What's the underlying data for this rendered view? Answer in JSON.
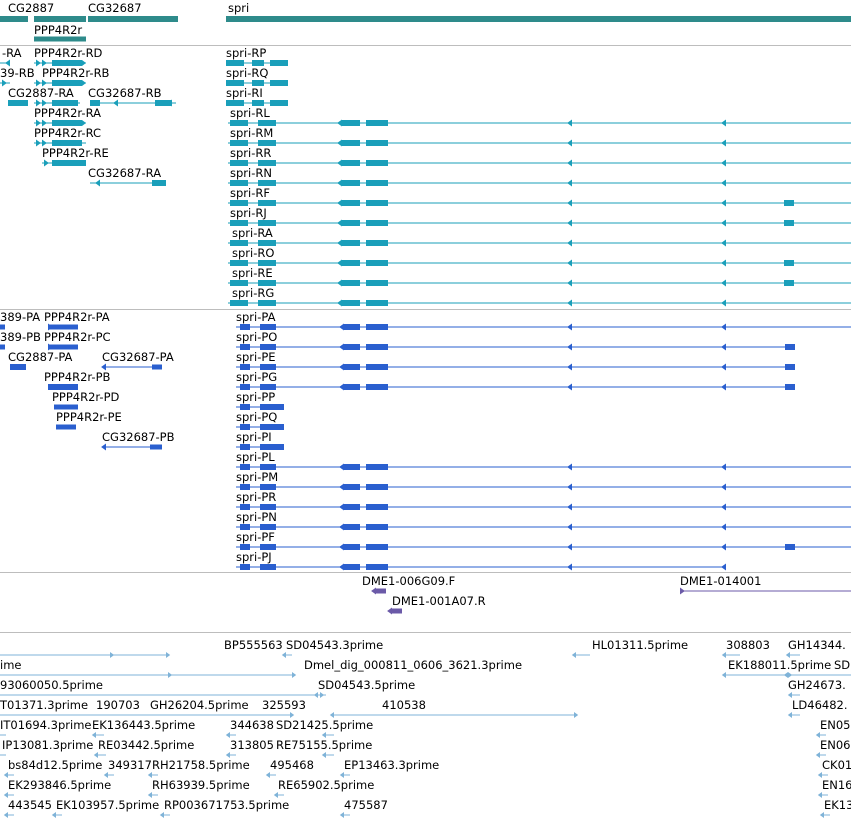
{
  "colors": {
    "gene": "#2e8b8b",
    "transcript": "#1a9fba",
    "protein": "#2a5fcf",
    "cdna": "#6b5aa8",
    "est": "#7fb3d8",
    "divider": "#bdbdbd"
  },
  "tracks": {
    "genes": {
      "labels": [
        {
          "id": "g1",
          "text": "CG2887"
        },
        {
          "id": "g2",
          "text": "PPP4R2r"
        },
        {
          "id": "g3",
          "text": "CG32687"
        },
        {
          "id": "g4",
          "text": "spri"
        }
      ]
    },
    "transcripts": {
      "labels": [
        {
          "id": "t1",
          "text": "-RA"
        },
        {
          "id": "t2",
          "text": "PPP4R2r-RD"
        },
        {
          "id": "t3",
          "text": "spri-RP"
        },
        {
          "id": "t4",
          "text": "39-RB"
        },
        {
          "id": "t5",
          "text": "PPP4R2r-RB"
        },
        {
          "id": "t6",
          "text": "spri-RQ"
        },
        {
          "id": "t7",
          "text": "CG2887-RA"
        },
        {
          "id": "t8",
          "text": "CG32687-RB"
        },
        {
          "id": "t9",
          "text": "spri-RI"
        },
        {
          "id": "t10",
          "text": "PPP4R2r-RA"
        },
        {
          "id": "t11",
          "text": "spri-RL"
        },
        {
          "id": "t12",
          "text": "PPP4R2r-RC"
        },
        {
          "id": "t13",
          "text": "spri-RM"
        },
        {
          "id": "t14",
          "text": "PPP4R2r-RE"
        },
        {
          "id": "t15",
          "text": "spri-RR"
        },
        {
          "id": "t16",
          "text": "CG32687-RA"
        },
        {
          "id": "t17",
          "text": "spri-RN"
        },
        {
          "id": "t18",
          "text": "spri-RF"
        },
        {
          "id": "t19",
          "text": "spri-RJ"
        },
        {
          "id": "t20",
          "text": "spri-RA"
        },
        {
          "id": "t21",
          "text": "spri-RO"
        },
        {
          "id": "t22",
          "text": "spri-RE"
        },
        {
          "id": "t23",
          "text": "spri-RG"
        }
      ]
    },
    "proteins": {
      "labels": [
        {
          "id": "p1",
          "text": "389-PA"
        },
        {
          "id": "p2",
          "text": "PPP4R2r-PA"
        },
        {
          "id": "p3",
          "text": "spri-PA"
        },
        {
          "id": "p4",
          "text": "389-PB"
        },
        {
          "id": "p5",
          "text": "PPP4R2r-PC"
        },
        {
          "id": "p6",
          "text": "spri-PO"
        },
        {
          "id": "p7",
          "text": "CG2887-PA"
        },
        {
          "id": "p8",
          "text": "CG32687-PA"
        },
        {
          "id": "p9",
          "text": "spri-PE"
        },
        {
          "id": "p10",
          "text": "PPP4R2r-PB"
        },
        {
          "id": "p11",
          "text": "spri-PG"
        },
        {
          "id": "p12",
          "text": "PPP4R2r-PD"
        },
        {
          "id": "p13",
          "text": "spri-PP"
        },
        {
          "id": "p14",
          "text": "PPP4R2r-PE"
        },
        {
          "id": "p15",
          "text": "spri-PQ"
        },
        {
          "id": "p16",
          "text": "CG32687-PB"
        },
        {
          "id": "p17",
          "text": "spri-PI"
        },
        {
          "id": "p18",
          "text": "spri-PL"
        },
        {
          "id": "p19",
          "text": "spri-PM"
        },
        {
          "id": "p20",
          "text": "spri-PR"
        },
        {
          "id": "p21",
          "text": "spri-PN"
        },
        {
          "id": "p22",
          "text": "spri-PF"
        },
        {
          "id": "p23",
          "text": "spri-PJ"
        }
      ]
    },
    "cdna": {
      "labels": [
        {
          "id": "c1",
          "text": "DME1-006G09.F"
        },
        {
          "id": "c2",
          "text": "DME1-014001"
        },
        {
          "id": "c3",
          "text": "DME1-001A07.R"
        }
      ]
    },
    "ests": {
      "labels": [
        {
          "id": "e1",
          "text": "BP555563"
        },
        {
          "id": "e2",
          "text": "SD04543.3prime"
        },
        {
          "id": "e3",
          "text": "HL01311.5prime"
        },
        {
          "id": "e4",
          "text": "308803"
        },
        {
          "id": "e5",
          "text": "GH14344."
        },
        {
          "id": "e6",
          "text": "ime"
        },
        {
          "id": "e7",
          "text": "Dmel_dig_000811_0606_3621.3prime"
        },
        {
          "id": "e8",
          "text": "EK188011.5prime"
        },
        {
          "id": "e9",
          "text": "SD"
        },
        {
          "id": "e10",
          "text": "93060050.5prime"
        },
        {
          "id": "e11",
          "text": "SD04543.5prime"
        },
        {
          "id": "e12",
          "text": "GH24673."
        },
        {
          "id": "e13",
          "text": "T01371.3prime"
        },
        {
          "id": "e14",
          "text": "190703"
        },
        {
          "id": "e15",
          "text": "GH26204.5prime"
        },
        {
          "id": "e16",
          "text": "325593"
        },
        {
          "id": "e17",
          "text": "410538"
        },
        {
          "id": "e18",
          "text": "LD46482."
        },
        {
          "id": "e19",
          "text": "IT01694.3prime"
        },
        {
          "id": "e20",
          "text": "EK136443.5prime"
        },
        {
          "id": "e21",
          "text": "344638"
        },
        {
          "id": "e22",
          "text": "SD21425.5prime"
        },
        {
          "id": "e23",
          "text": "EN05"
        },
        {
          "id": "e24",
          "text": "IP13081.3prime"
        },
        {
          "id": "e25",
          "text": "RE03442.5prime"
        },
        {
          "id": "e26",
          "text": "313805"
        },
        {
          "id": "e27",
          "text": "RE75155.5prime"
        },
        {
          "id": "e28",
          "text": "EN06"
        },
        {
          "id": "e29",
          "text": "bs84d12.5prime"
        },
        {
          "id": "e30",
          "text": "349317"
        },
        {
          "id": "e31",
          "text": "RH21758.5prime"
        },
        {
          "id": "e32",
          "text": "495468"
        },
        {
          "id": "e33",
          "text": "EP13463.3prime"
        },
        {
          "id": "e34",
          "text": "CK01"
        },
        {
          "id": "e35",
          "text": "EK293846.5prime"
        },
        {
          "id": "e36",
          "text": "RH63939.5prime"
        },
        {
          "id": "e37",
          "text": "RE65902.5prime"
        },
        {
          "id": "e38",
          "text": "EN16"
        },
        {
          "id": "e39",
          "text": "443545"
        },
        {
          "id": "e40",
          "text": "EK103957.5prime"
        },
        {
          "id": "e41",
          "text": "RP003671753.5prime"
        },
        {
          "id": "e42",
          "text": "475587"
        },
        {
          "id": "e43",
          "text": "EK13"
        }
      ]
    }
  }
}
